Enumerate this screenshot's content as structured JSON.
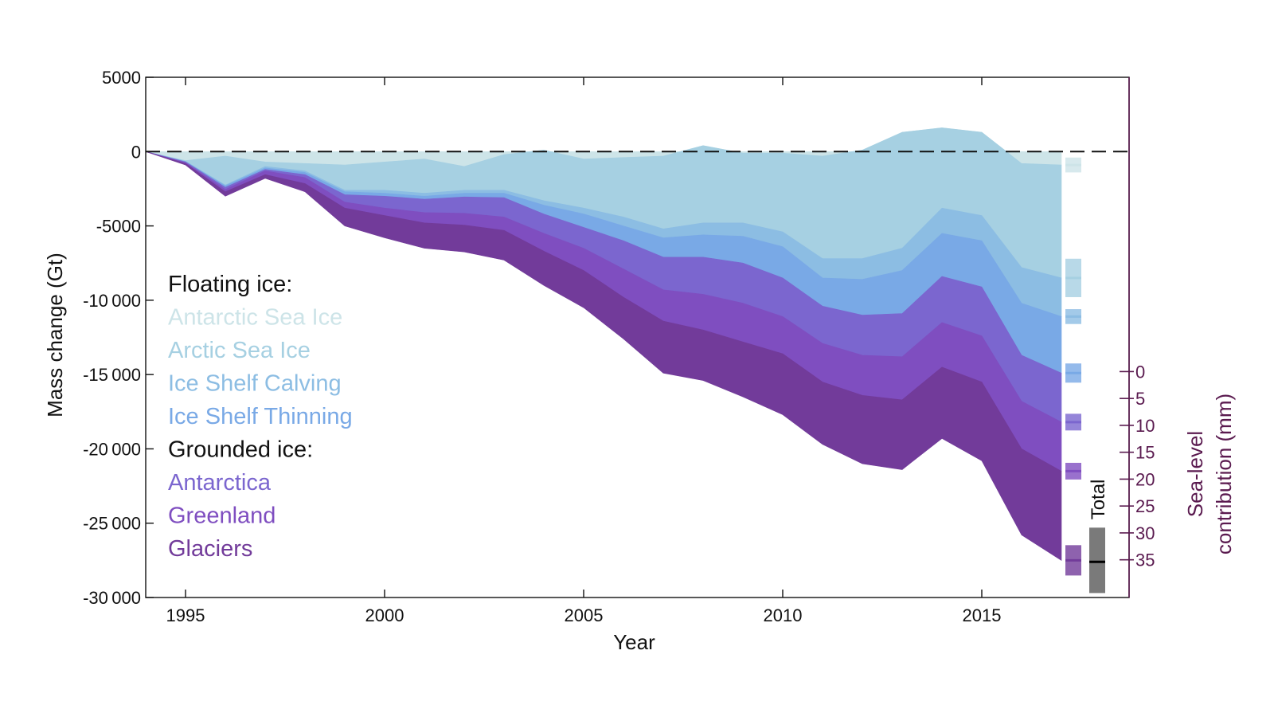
{
  "chart_data": {
    "type": "area",
    "stacked": true,
    "xlabel": "Year",
    "ylabel": "Mass change (Gt)",
    "y2label_lines": [
      "Sea-level",
      "contribution (mm)"
    ],
    "xlim": [
      1994,
      2018.7
    ],
    "ylim": [
      -30000,
      5000
    ],
    "x_ticks": [
      1995,
      2000,
      2005,
      2010,
      2015
    ],
    "x_tick_labels": [
      "1995",
      "2000",
      "2005",
      "2010",
      "2015"
    ],
    "y_ticks": [
      5000,
      0,
      -5000,
      -10000,
      -15000,
      -20000,
      -25000,
      -30000
    ],
    "y_tick_labels": [
      "5000",
      "0",
      "-5000",
      "-10 000",
      "-15 000",
      "-20 000",
      "-25 000",
      "-30 000"
    ],
    "y2_ticks_mm": [
      0,
      5,
      10,
      15,
      20,
      25,
      30,
      35
    ],
    "y2_tick_labels": [
      "0",
      "5",
      "10",
      "15",
      "20",
      "25",
      "30",
      "35"
    ],
    "y2_zero_mass": -14800,
    "y2_gt_per_mm": -361.8,
    "x": [
      1994,
      1995,
      1996,
      1997,
      1998,
      1999,
      2000,
      2001,
      2002,
      2003,
      2004,
      2005,
      2006,
      2007,
      2008,
      2009,
      2010,
      2011,
      2012,
      2013,
      2014,
      2015,
      2016,
      2017
    ],
    "series": [
      {
        "name": "Antarctic Sea Ice",
        "color": "#cde4e8",
        "values": [
          0,
          -600,
          -300,
          -700,
          -800,
          -900,
          -700,
          -500,
          -1000,
          -200,
          100,
          -500,
          -400,
          -300,
          400,
          -100,
          -100,
          -300,
          100,
          1300,
          1600,
          1300,
          -800,
          -900
        ]
      },
      {
        "name": "Arctic Sea Ice",
        "color": "#a6d0e2",
        "values": [
          0,
          -50,
          -1950,
          -300,
          -500,
          -1700,
          -1900,
          -2300,
          -1600,
          -2400,
          -3400,
          -3300,
          -4000,
          -4900,
          -5200,
          -4700,
          -5300,
          -6900,
          -7300,
          -7800,
          -5400,
          -5600,
          -7000,
          -7600
        ]
      },
      {
        "name": "Ice Shelf Calving",
        "color": "#8cbde3",
        "values": [
          0,
          -20,
          -50,
          -100,
          -100,
          -100,
          -200,
          -200,
          -200,
          -200,
          -300,
          -400,
          -600,
          -600,
          -800,
          -900,
          -1000,
          -1300,
          -1400,
          -1500,
          -1700,
          -1700,
          -2400,
          -2600
        ]
      },
      {
        "name": "Ice Shelf Thinning",
        "color": "#79a9e6",
        "values": [
          0,
          -30,
          -100,
          -100,
          -150,
          -200,
          -200,
          -200,
          -250,
          -300,
          -600,
          -900,
          -1000,
          -1300,
          -1500,
          -1800,
          -2100,
          -1900,
          -2400,
          -2900,
          -2900,
          -3100,
          -3500,
          -3800
        ]
      },
      {
        "name": "Antarctica",
        "color": "#7b66cf",
        "values": [
          0,
          -50,
          -150,
          -100,
          -200,
          -500,
          -800,
          -900,
          -1100,
          -1300,
          -1300,
          -1400,
          -1900,
          -2200,
          -2500,
          -2700,
          -2600,
          -2500,
          -2700,
          -2900,
          -3100,
          -3300,
          -3100,
          -3300
        ]
      },
      {
        "name": "Greenland",
        "color": "#7f4ec0",
        "values": [
          0,
          -50,
          -150,
          -250,
          -400,
          -400,
          -500,
          -700,
          -800,
          -900,
          -1200,
          -1500,
          -1900,
          -2100,
          -2400,
          -2600,
          -2500,
          -2600,
          -2700,
          -2900,
          -3000,
          -3100,
          -3200,
          -3300
        ]
      },
      {
        "name": "Glaciers",
        "color": "#723b9a",
        "values": [
          0,
          -100,
          -300,
          -250,
          -550,
          -1200,
          -1500,
          -1700,
          -1800,
          -2000,
          -2300,
          -2500,
          -2800,
          -3500,
          -3400,
          -3700,
          -4100,
          -4200,
          -4600,
          -4700,
          -4800,
          -5300,
          -5800,
          -6000
        ]
      }
    ],
    "error_bar_x": 2017.3,
    "total_bar": {
      "label": "Total",
      "x": 2017.9,
      "value": -27600,
      "low": -29700,
      "high": -25300
    },
    "zero_line": "dashed"
  },
  "legend": {
    "floating_heading": "Floating ice:",
    "floating": [
      "Antarctic Sea Ice",
      "Arctic Sea Ice",
      "Ice Shelf Calving",
      "Ice Shelf Thinning"
    ],
    "grounded_heading": "Grounded ice:",
    "grounded": [
      "Antarctica",
      "Greenland",
      "Glaciers"
    ]
  },
  "colors": {
    "axis": "#111111",
    "right_axis": "#5a1a4f",
    "total_bar": "#7a7a7a"
  }
}
